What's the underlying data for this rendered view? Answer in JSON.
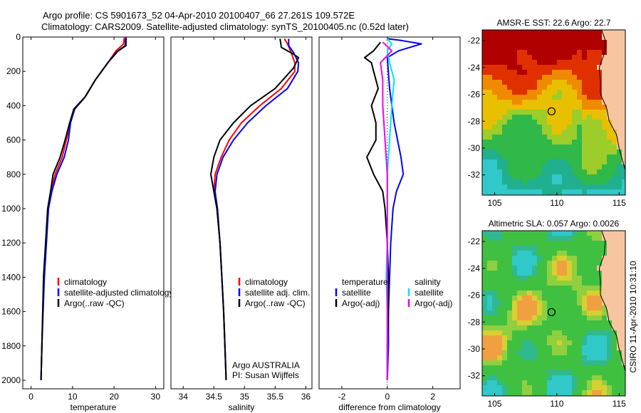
{
  "header": {
    "line1": "Argo profile: CS 5901673_52 04-Apr-2010 20100407_66 27.261S 109.572E",
    "line2": "Climatology: CARS2009. Satellite-adjusted climatology: synTS_20100405.nc (0.52d later)"
  },
  "footer": {
    "credit": "CSIRO 11-Apr-2010 10:31:10"
  },
  "colors": {
    "climatology": "#ff0000",
    "satellite": "#0000ff",
    "argo": "#000000",
    "sal_satellite": "#00e5ee",
    "sal_argo": "#ee00ee",
    "land": "#f7c59f"
  },
  "chart_data": [
    {
      "id": "temperature",
      "type": "line",
      "xlabel": "temperature",
      "ylabel": "",
      "xlim": [
        -2,
        32
      ],
      "ylim": [
        2050,
        0
      ],
      "xticks": [
        0,
        10,
        20,
        30
      ],
      "yticks": [
        0,
        200,
        400,
        600,
        800,
        1000,
        1200,
        1400,
        1600,
        1800,
        2000
      ],
      "legend": [
        "climatology",
        "satellite-adjusted climatology",
        "Argo(..raw -QC)"
      ],
      "series": [
        {
          "name": "climatology",
          "color": "#ff0000",
          "points": [
            [
              22.5,
              0
            ],
            [
              22.3,
              40
            ],
            [
              20.5,
              80
            ],
            [
              18.5,
              150
            ],
            [
              15.5,
              250
            ],
            [
              13,
              350
            ],
            [
              10.5,
              420
            ],
            [
              9.5,
              500
            ],
            [
              8.5,
              600
            ],
            [
              7.5,
              700
            ],
            [
              5.8,
              800
            ],
            [
              4.8,
              900
            ],
            [
              4.1,
              1000
            ],
            [
              3.6,
              1200
            ],
            [
              3.1,
              1400
            ],
            [
              2.8,
              1600
            ],
            [
              2.6,
              1800
            ],
            [
              2.4,
              2000
            ]
          ]
        },
        {
          "name": "satellite-adjusted climatology",
          "color": "#0000ff",
          "points": [
            [
              22.9,
              0
            ],
            [
              22.9,
              50
            ],
            [
              20.5,
              90
            ],
            [
              18.5,
              150
            ],
            [
              15.5,
              250
            ],
            [
              13,
              350
            ],
            [
              10.5,
              420
            ],
            [
              9.5,
              500
            ],
            [
              9,
              600
            ],
            [
              8,
              700
            ],
            [
              6.2,
              800
            ],
            [
              5,
              900
            ],
            [
              4.2,
              1000
            ],
            [
              3.7,
              1200
            ],
            [
              3.2,
              1400
            ],
            [
              2.9,
              1600
            ],
            [
              2.6,
              1800
            ],
            [
              2.4,
              2000
            ]
          ]
        },
        {
          "name": "Argo(..raw -QC)",
          "color": "#000000",
          "points": [
            [
              22.8,
              10
            ],
            [
              22.7,
              50
            ],
            [
              21,
              80
            ],
            [
              18.5,
              150
            ],
            [
              15.5,
              250
            ],
            [
              13,
              350
            ],
            [
              10.3,
              420
            ],
            [
              9.3,
              500
            ],
            [
              8.2,
              600
            ],
            [
              7,
              700
            ],
            [
              5.3,
              800
            ],
            [
              4.7,
              900
            ],
            [
              4,
              1000
            ],
            [
              3.5,
              1200
            ],
            [
              3,
              1400
            ],
            [
              2.8,
              1600
            ],
            [
              2.6,
              1800
            ],
            [
              2.4,
              2000
            ]
          ]
        }
      ],
      "annotations": []
    },
    {
      "id": "salinity",
      "type": "line",
      "xlabel": "salinity",
      "ylabel": "",
      "xlim": [
        33.8,
        36.1
      ],
      "ylim": [
        2050,
        0
      ],
      "xticks": [
        34,
        34.5,
        35,
        35.5,
        36
      ],
      "yticks": [],
      "legend": [
        "climatology",
        "satellite adj. clim.",
        "Argo(..raw -QC)"
      ],
      "series": [
        {
          "name": "climatology",
          "color": "#ff0000",
          "points": [
            [
              35.65,
              10
            ],
            [
              35.7,
              40
            ],
            [
              35.75,
              80
            ],
            [
              35.82,
              150
            ],
            [
              35.82,
              200
            ],
            [
              35.6,
              300
            ],
            [
              35.25,
              400
            ],
            [
              34.95,
              500
            ],
            [
              34.75,
              600
            ],
            [
              34.62,
              700
            ],
            [
              34.52,
              800
            ],
            [
              34.5,
              900
            ],
            [
              34.55,
              1000
            ],
            [
              34.6,
              1200
            ],
            [
              34.63,
              1400
            ],
            [
              34.66,
              1600
            ],
            [
              34.68,
              1800
            ],
            [
              34.7,
              2000
            ]
          ]
        },
        {
          "name": "satellite adj. clim.",
          "color": "#0000ff",
          "points": [
            [
              35.72,
              10
            ],
            [
              35.72,
              50
            ],
            [
              35.8,
              90
            ],
            [
              35.88,
              150
            ],
            [
              35.87,
              200
            ],
            [
              35.7,
              300
            ],
            [
              35.35,
              400
            ],
            [
              35.05,
              500
            ],
            [
              34.82,
              600
            ],
            [
              34.65,
              700
            ],
            [
              34.55,
              800
            ],
            [
              34.52,
              900
            ],
            [
              34.56,
              1000
            ],
            [
              34.6,
              1200
            ],
            [
              34.63,
              1400
            ],
            [
              34.66,
              1600
            ],
            [
              34.68,
              1800
            ],
            [
              34.7,
              2000
            ]
          ]
        },
        {
          "name": "Argo(..raw -QC)",
          "color": "#000000",
          "points": [
            [
              35.58,
              10
            ],
            [
              35.6,
              60
            ],
            [
              35.8,
              100
            ],
            [
              35.88,
              120
            ],
            [
              35.8,
              180
            ],
            [
              35.5,
              300
            ],
            [
              35.1,
              400
            ],
            [
              34.82,
              500
            ],
            [
              34.6,
              600
            ],
            [
              34.5,
              700
            ],
            [
              34.45,
              800
            ],
            [
              34.5,
              900
            ],
            [
              34.55,
              1000
            ],
            [
              34.6,
              1200
            ],
            [
              34.63,
              1400
            ],
            [
              34.66,
              1600
            ],
            [
              34.68,
              1800
            ],
            [
              34.7,
              2000
            ]
          ]
        }
      ],
      "annotations": [
        "Argo AUSTRALIA",
        "PI: Susan Wijffels"
      ]
    },
    {
      "id": "difference",
      "type": "line",
      "xlabel": "difference from climatology",
      "ylabel": "",
      "xlim": [
        -3,
        3.2
      ],
      "ylim": [
        2050,
        0
      ],
      "xticks": [
        -2,
        0,
        2
      ],
      "yticks": [],
      "legend_groups": [
        {
          "heading": "temperature",
          "items": [
            "satellite",
            "Argo(-adj)"
          ]
        },
        {
          "heading": "salinity",
          "items": [
            "satellite",
            "Argo(-adj)"
          ]
        }
      ],
      "series": [
        {
          "name": "temperature satellite",
          "color": "#0000ff",
          "points": [
            [
              0,
              10
            ],
            [
              0.6,
              20
            ],
            [
              1.5,
              40
            ],
            [
              0.5,
              80
            ],
            [
              0,
              120
            ],
            [
              0.1,
              300
            ],
            [
              0.3,
              500
            ],
            [
              0.6,
              700
            ],
            [
              0.7,
              800
            ],
            [
              0.4,
              900
            ],
            [
              0.25,
              1000
            ],
            [
              0.15,
              1200
            ],
            [
              0.1,
              1400
            ],
            [
              0.05,
              1600
            ],
            [
              0.05,
              1800
            ],
            [
              0,
              2000
            ]
          ]
        },
        {
          "name": "temperature Argo(-adj)",
          "color": "#000000",
          "points": [
            [
              -0.3,
              30
            ],
            [
              -0.6,
              80
            ],
            [
              -1,
              120
            ],
            [
              -0.7,
              150
            ],
            [
              -0.6,
              200
            ],
            [
              -0.4,
              300
            ],
            [
              -0.7,
              400
            ],
            [
              -0.5,
              500
            ],
            [
              -0.5,
              600
            ],
            [
              -0.9,
              700
            ],
            [
              -0.6,
              800
            ],
            [
              -0.2,
              900
            ],
            [
              -0.1,
              1000
            ],
            [
              0,
              1200
            ],
            [
              0.05,
              1400
            ],
            [
              0.05,
              1600
            ],
            [
              0,
              1800
            ],
            [
              0,
              2000
            ]
          ]
        },
        {
          "name": "salinity satellite",
          "color": "#00e5ee",
          "points": [
            [
              0,
              10
            ],
            [
              0.2,
              40
            ],
            [
              0,
              80
            ],
            [
              0.1,
              150
            ],
            [
              0.3,
              250
            ],
            [
              0.2,
              400
            ],
            [
              0.1,
              600
            ],
            [
              0,
              800
            ],
            [
              0,
              1000
            ],
            [
              0,
              1200
            ],
            [
              -0.05,
              1400
            ],
            [
              0,
              1600
            ],
            [
              0,
              1800
            ],
            [
              0,
              2000
            ]
          ]
        },
        {
          "name": "salinity Argo(-adj)",
          "color": "#ee00ee",
          "points": [
            [
              -0.2,
              30
            ],
            [
              0.2,
              80
            ],
            [
              -0.3,
              150
            ],
            [
              -0.2,
              250
            ],
            [
              -0.2,
              400
            ],
            [
              -0.1,
              600
            ],
            [
              0,
              800
            ],
            [
              0,
              1000
            ],
            [
              0,
              1200
            ],
            [
              0,
              1400
            ],
            [
              0,
              1600
            ],
            [
              0,
              1800
            ],
            [
              0,
              2000
            ]
          ]
        }
      ],
      "annotations": []
    },
    {
      "id": "sst_map",
      "type": "heatmap",
      "title": "AMSR-E SST: 22.6 Argo: 22.7",
      "xticks": [
        105,
        110,
        115
      ],
      "yticks": [
        -22,
        -24,
        -26,
        -28,
        -30,
        -32
      ],
      "xlim": [
        104,
        115.5
      ],
      "ylim": [
        -33.5,
        -21.2
      ],
      "marker": [
        109.572,
        -27.261
      ]
    },
    {
      "id": "sla_map",
      "type": "heatmap",
      "title": "Altimetric SLA: 0.057 Argo: 0.0026",
      "xticks": [
        105,
        110,
        115
      ],
      "yticks": [
        -22,
        -24,
        -26,
        -28,
        -30,
        -32
      ],
      "xlim": [
        104,
        115.5
      ],
      "ylim": [
        -33.5,
        -21.2
      ],
      "marker": [
        109.572,
        -27.261
      ]
    }
  ]
}
